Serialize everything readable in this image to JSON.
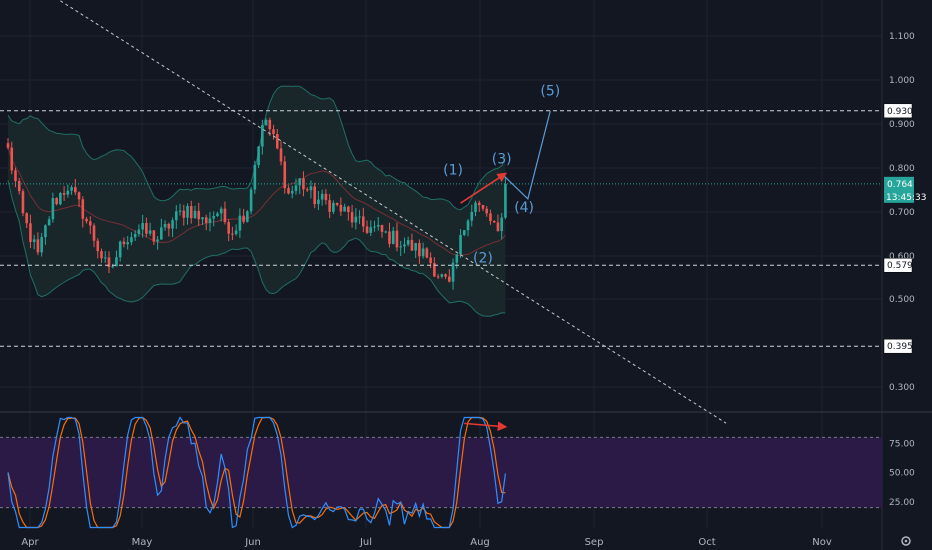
{
  "colors": {
    "background": "#131722",
    "grid": "#1f2330",
    "up": "#26a69a",
    "down": "#ef5350",
    "band": "#1f6f64",
    "band_fill": "#19272b",
    "basis": "#7a2d31",
    "trend": "#c8c8c8",
    "wave": "#5b9bd5",
    "divergence": "#e53935",
    "stoch_k": "#2f8fff",
    "stoch_d": "#ff6d00",
    "stoch_band": "#2b1a45",
    "tick": "#b2b5be"
  },
  "chart_data": [
    {
      "type": "candlestick",
      "x_labels": [
        "Apr",
        "May",
        "Jun",
        "Jul",
        "Aug",
        "Sep",
        "Oct",
        "Nov"
      ],
      "y_ticks": [
        "1.100",
        "1.000",
        "0.900",
        "0.800",
        "0.700",
        "0.600",
        "0.500",
        "0.300"
      ],
      "ylim": [
        0.22,
        1.18
      ],
      "grid": true,
      "price_lines": [
        {
          "value": 0.93,
          "label": "0.930",
          "style": "dashed"
        },
        {
          "value": 0.579,
          "label": "0.579",
          "style": "dashed"
        },
        {
          "value": 0.395,
          "label": "0.395",
          "style": "dashed"
        }
      ],
      "current_price": {
        "value": 0.764,
        "label": "0.764",
        "countdown": "13:45:33"
      },
      "wave_labels": [
        {
          "label": "(1)",
          "bar": 119,
          "price": 0.785
        },
        {
          "label": "(2)",
          "bar": 127,
          "price": 0.585
        },
        {
          "label": "(3)",
          "bar": 132,
          "price": 0.81
        },
        {
          "label": "(4)",
          "bar": 138,
          "price": 0.7
        },
        {
          "label": "(5)",
          "bar": 145,
          "price": 0.965
        }
      ],
      "projection": [
        {
          "bar": 132,
          "price": 0.787
        },
        {
          "bar": 139,
          "price": 0.73
        },
        {
          "bar": 145,
          "price": 0.93
        }
      ],
      "trendline": [
        {
          "bar": 14,
          "price": 1.18
        },
        {
          "bar": 192,
          "price": 0.22
        }
      ],
      "divergence_arrow": [
        {
          "bar": 121,
          "price": 0.72
        },
        {
          "bar": 133,
          "price": 0.787
        }
      ]
    },
    {
      "type": "line",
      "y_ticks": [
        "75.00",
        "50.00",
        "25.00"
      ],
      "ylim": [
        0,
        100
      ],
      "overbought": 80,
      "oversold": 20,
      "divergence_arrow": [
        {
          "bar": 122,
          "value": 92
        },
        {
          "bar": 133,
          "value": 89
        }
      ]
    }
  ]
}
